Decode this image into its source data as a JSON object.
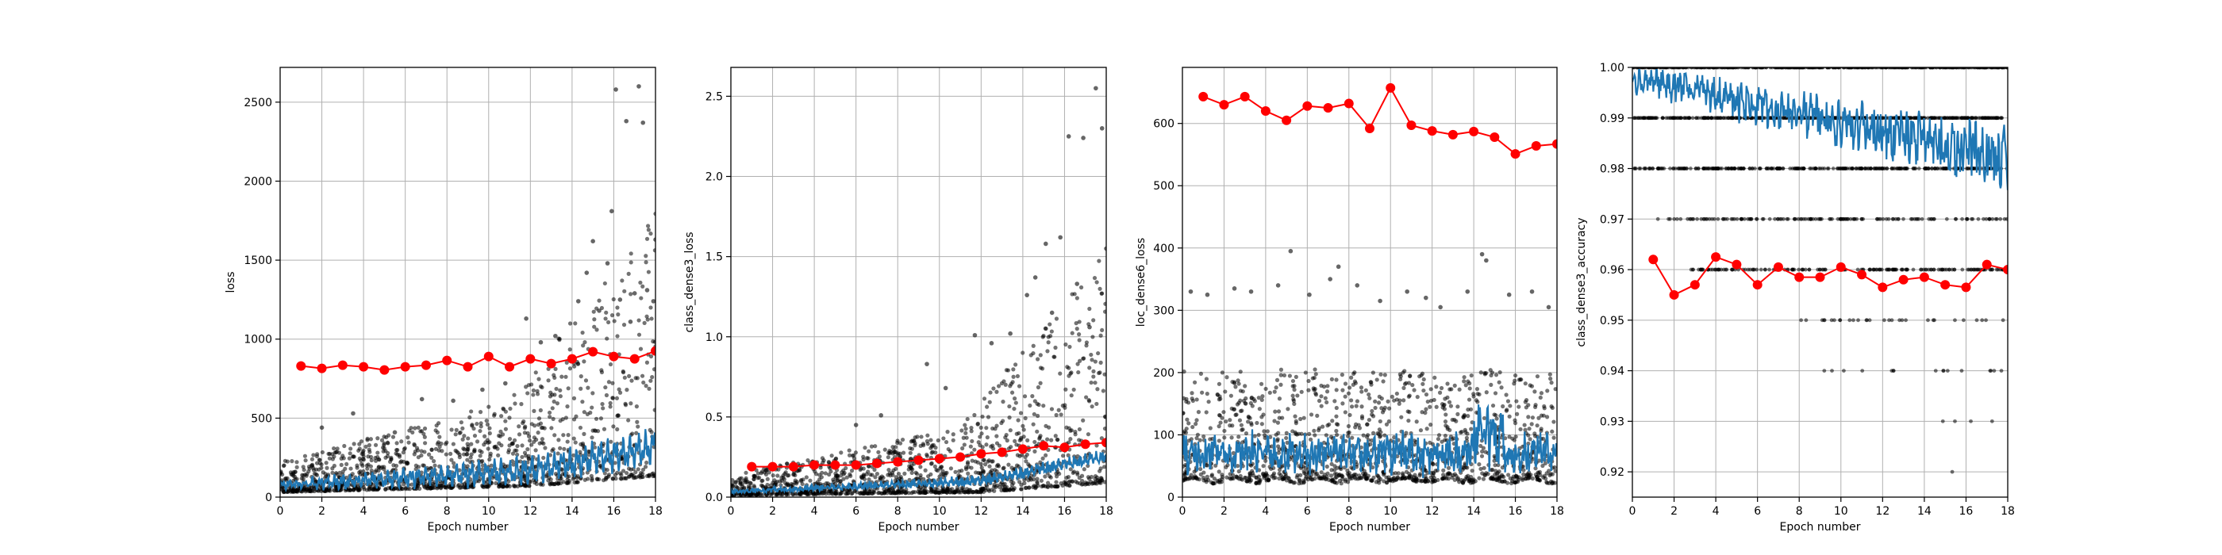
{
  "chart_data": [
    {
      "type": "scatter",
      "xlabel": "Epoch number",
      "ylabel": "loss",
      "xlim": [
        0,
        18
      ],
      "ylim": [
        0,
        2720
      ],
      "xticks": [
        0,
        2,
        4,
        6,
        8,
        10,
        12,
        14,
        16,
        18
      ],
      "yticks": [
        0,
        500,
        1000,
        1500,
        2000,
        2500
      ],
      "grid": true,
      "series": [
        {
          "kind": "scatter-raw",
          "color": "#000000",
          "x": [
            2.0,
            3.5,
            5.5,
            6.8,
            8.3,
            9.7,
            10.8,
            11.8,
            12.5,
            13.2,
            14.3,
            14.7,
            15.0,
            15.3,
            15.7,
            15.9,
            16.1,
            16.3,
            16.6,
            16.8,
            17.0,
            17.2,
            17.4,
            17.6,
            17.9,
            18.0
          ],
          "y": [
            440,
            530,
            410,
            620,
            610,
            680,
            720,
            1130,
            980,
            1020,
            1240,
            1420,
            1620,
            1180,
            1480,
            1810,
            2580,
            1250,
            2380,
            1110,
            1290,
            2600,
            2370,
            1310,
            1240,
            1630
          ]
        },
        {
          "kind": "epoch-mean",
          "color": "#ff0000",
          "x": [
            1,
            2,
            3,
            4,
            5,
            6,
            7,
            8,
            9,
            10,
            11,
            12,
            13,
            14,
            15,
            16,
            17,
            18
          ],
          "y": [
            830,
            815,
            835,
            825,
            805,
            825,
            835,
            865,
            825,
            890,
            825,
            875,
            845,
            875,
            920,
            890,
            875,
            925
          ]
        }
      ]
    },
    {
      "type": "scatter",
      "xlabel": "Epoch number",
      "ylabel": "class_dense3_loss",
      "xlim": [
        0,
        18
      ],
      "ylim": [
        0,
        2.68
      ],
      "xticks": [
        0,
        2,
        4,
        6,
        8,
        10,
        12,
        14,
        16,
        18
      ],
      "yticks": [
        0.0,
        0.5,
        1.0,
        1.5,
        2.0,
        2.5
      ],
      "grid": true,
      "series": [
        {
          "kind": "scatter-raw",
          "color": "#000000",
          "x": [
            6.0,
            7.2,
            9.4,
            10.3,
            11.7,
            12.5,
            13.4,
            14.2,
            14.6,
            15.1,
            15.4,
            15.8,
            16.2,
            16.6,
            16.9,
            17.2,
            17.5,
            17.8,
            18.0
          ],
          "y": [
            0.45,
            0.51,
            0.83,
            0.68,
            1.01,
            0.96,
            1.02,
            1.26,
            1.37,
            1.58,
            1.15,
            1.62,
            2.25,
            1.33,
            2.24,
            1.06,
            2.55,
            2.3,
            1.55
          ]
        },
        {
          "kind": "epoch-mean",
          "color": "#ff0000",
          "x": [
            1,
            2,
            3,
            4,
            5,
            6,
            7,
            8,
            9,
            10,
            11,
            12,
            13,
            14,
            15,
            16,
            17,
            18
          ],
          "y": [
            0.19,
            0.19,
            0.19,
            0.2,
            0.2,
            0.2,
            0.21,
            0.22,
            0.23,
            0.24,
            0.25,
            0.27,
            0.28,
            0.3,
            0.32,
            0.31,
            0.33,
            0.34
          ]
        }
      ]
    },
    {
      "type": "scatter",
      "xlabel": "Epoch number",
      "ylabel": "loc_dense6_loss",
      "xlim": [
        0,
        18
      ],
      "ylim": [
        0,
        690
      ],
      "xticks": [
        0,
        2,
        4,
        6,
        8,
        10,
        12,
        14,
        16,
        18
      ],
      "yticks": [
        0,
        100,
        200,
        300,
        400,
        500,
        600
      ],
      "grid": true,
      "series": [
        {
          "kind": "scatter-raw",
          "color": "#000000",
          "x": [
            0.4,
            1.2,
            2.5,
            3.3,
            4.6,
            5.2,
            6.1,
            7.1,
            7.5,
            8.4,
            9.5,
            10.8,
            11.7,
            12.4,
            13.7,
            14.4,
            14.6,
            15.7,
            16.8,
            17.6
          ],
          "y": [
            330,
            325,
            335,
            330,
            340,
            395,
            325,
            350,
            370,
            340,
            315,
            330,
            320,
            305,
            330,
            390,
            380,
            325,
            330,
            305
          ]
        },
        {
          "kind": "epoch-mean",
          "color": "#ff0000",
          "x": [
            1,
            2,
            3,
            4,
            5,
            6,
            7,
            8,
            9,
            10,
            11,
            12,
            13,
            14,
            15,
            16,
            17,
            18
          ],
          "y": [
            643,
            630,
            643,
            620,
            605,
            628,
            625,
            632,
            592,
            657,
            597,
            588,
            582,
            587,
            578,
            551,
            564,
            567
          ]
        }
      ]
    },
    {
      "type": "scatter",
      "xlabel": "Epoch number",
      "ylabel": "class_dense3_accuracy",
      "xlim": [
        0,
        18
      ],
      "ylim": [
        0.915,
        1.0
      ],
      "xticks": [
        0,
        2,
        4,
        6,
        8,
        10,
        12,
        14,
        16,
        18
      ],
      "yticks": [
        0.92,
        0.93,
        0.94,
        0.95,
        0.96,
        0.97,
        0.98,
        0.99,
        1.0
      ],
      "grid": true,
      "series": [
        {
          "kind": "epoch-mean",
          "color": "#ff0000",
          "x": [
            1,
            2,
            3,
            4,
            5,
            6,
            7,
            8,
            9,
            10,
            11,
            12,
            13,
            14,
            15,
            16,
            17,
            18
          ],
          "y": [
            0.962,
            0.955,
            0.957,
            0.9625,
            0.961,
            0.957,
            0.9605,
            0.9585,
            0.9585,
            0.9605,
            0.959,
            0.9565,
            0.958,
            0.9585,
            0.957,
            0.9565,
            0.961,
            0.96
          ]
        }
      ]
    }
  ]
}
